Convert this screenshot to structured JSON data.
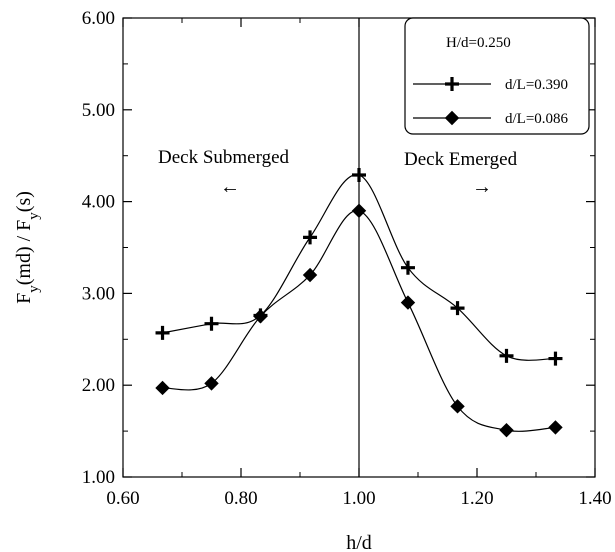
{
  "chart_data": {
    "type": "line",
    "title": "",
    "xlabel": "h/d",
    "ylabel": "F_y(md) / F_y(s)",
    "xlim": [
      0.6,
      1.4
    ],
    "ylim": [
      1.0,
      6.0
    ],
    "xticks": [
      "0.60",
      "0.80",
      "1.00",
      "1.20",
      "1.40"
    ],
    "yticks": [
      "1.00",
      "2.00",
      "3.00",
      "4.00",
      "5.00",
      "6.00"
    ],
    "vline_x": 1.0,
    "grid": false,
    "legend": {
      "placement": "top-right",
      "title": "H/d=0.250"
    },
    "series": [
      {
        "name": "d/L=0.390",
        "marker": "plus",
        "x": [
          0.667,
          0.75,
          0.833,
          0.917,
          1.0,
          1.083,
          1.167,
          1.25,
          1.333
        ],
        "y": [
          2.57,
          2.67,
          2.76,
          3.61,
          4.29,
          3.28,
          2.84,
          2.32,
          2.29
        ]
      },
      {
        "name": "d/L=0.086",
        "marker": "diamond",
        "x": [
          0.667,
          0.75,
          0.833,
          0.917,
          1.0,
          1.083,
          1.167,
          1.25,
          1.333
        ],
        "y": [
          1.97,
          2.02,
          2.75,
          3.2,
          3.9,
          2.9,
          1.77,
          1.51,
          1.54
        ]
      }
    ],
    "annotations": {
      "left_label": "Deck Submerged",
      "left_arrow": "←",
      "right_label": "Deck Emerged",
      "right_arrow": "→"
    }
  }
}
